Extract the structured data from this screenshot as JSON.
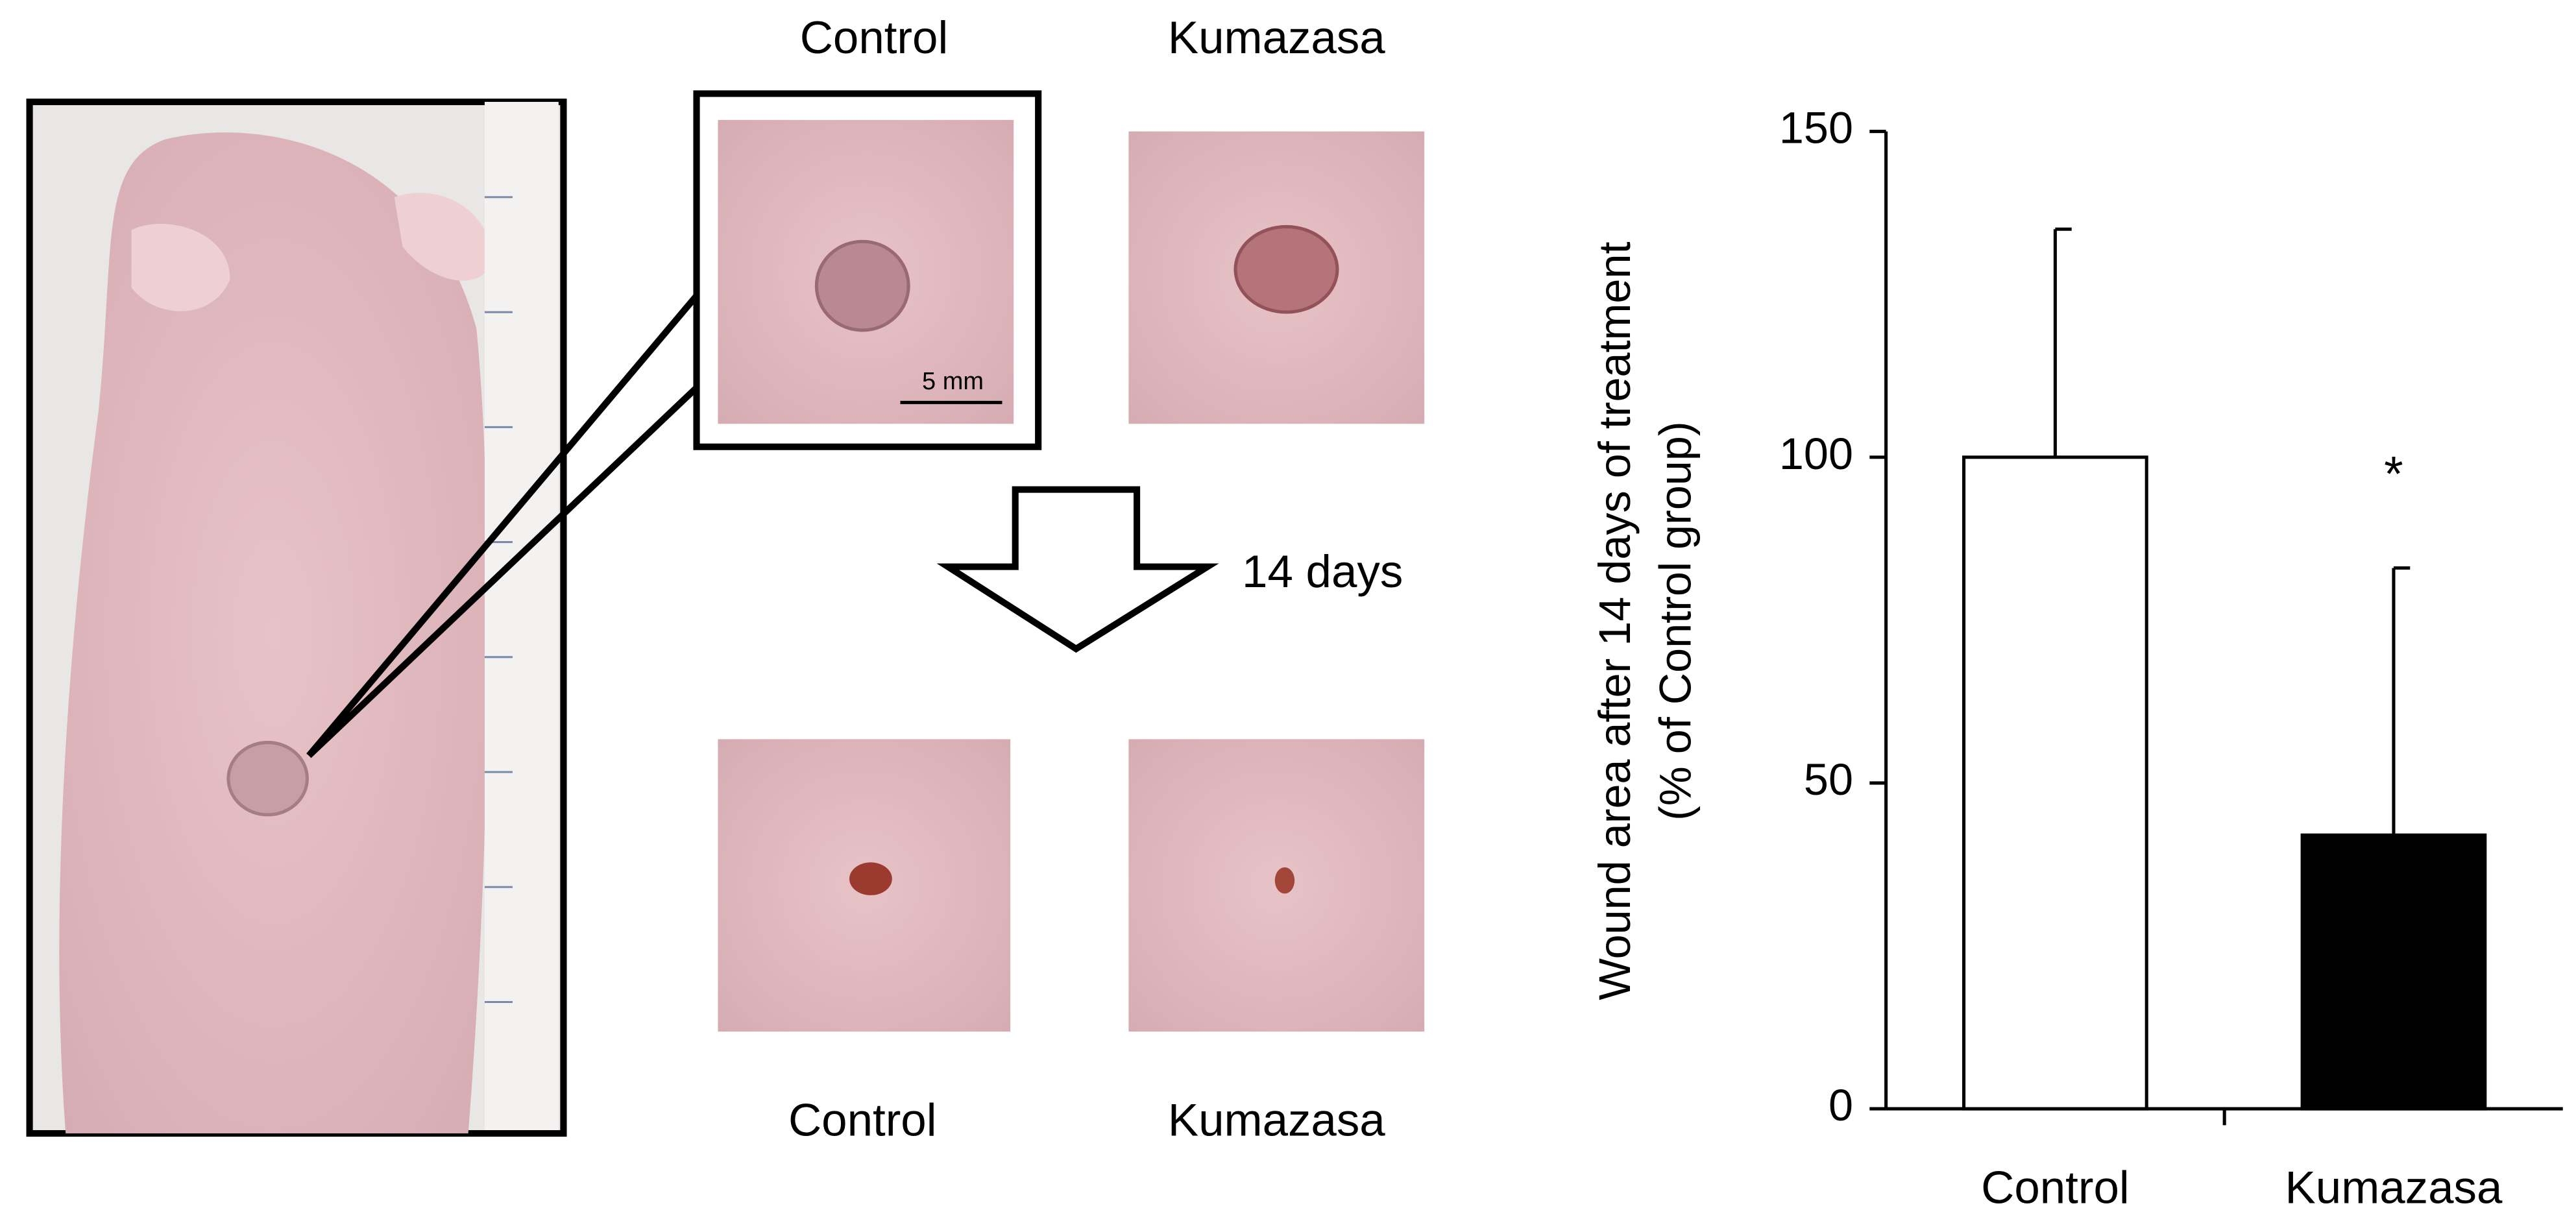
{
  "panels": {
    "top_labels": [
      "Control",
      "Kumazasa"
    ],
    "scale_bar": "5 mm",
    "arrow_label": "14 days",
    "bottom_labels": [
      "Control",
      "Kumazasa"
    ]
  },
  "chart_data": {
    "type": "bar",
    "y_label": [
      "Wound area after 14 days of treatment",
      "(% of Control group)"
    ],
    "categories": [
      "Control",
      "Kumazasa"
    ],
    "values": [
      100,
      42
    ],
    "errors": [
      35,
      41
    ],
    "colors": [
      "#ffffff",
      "#000000"
    ],
    "annotations": [
      {
        "text": "*",
        "category": "Kumazasa"
      }
    ],
    "ylim": [
      0,
      150
    ],
    "yticks": [
      0,
      50,
      100,
      150
    ],
    "grid": false
  }
}
